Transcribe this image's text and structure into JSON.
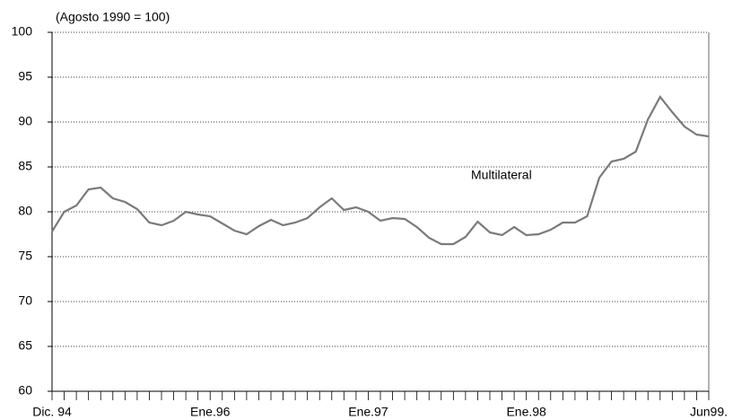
{
  "chart_data": {
    "type": "line",
    "subtitle": "(Agosto 1990 = 100)",
    "categories": [
      "Dic. 94",
      null,
      null,
      null,
      null,
      null,
      null,
      null,
      null,
      null,
      null,
      null,
      null,
      "Ene.96",
      null,
      null,
      null,
      null,
      null,
      null,
      null,
      null,
      null,
      null,
      null,
      null,
      "Ene.97",
      null,
      null,
      null,
      null,
      null,
      null,
      null,
      null,
      null,
      null,
      null,
      null,
      "Ene.98",
      null,
      null,
      null,
      null,
      null,
      null,
      null,
      null,
      null,
      null,
      null,
      null,
      null,
      null,
      "Jun99."
    ],
    "series": [
      {
        "name": "Multilateral",
        "color": "#7a7a7a",
        "values": [
          77.8,
          80.0,
          80.7,
          82.5,
          82.7,
          81.5,
          81.1,
          80.3,
          78.8,
          78.5,
          79.0,
          80.0,
          79.7,
          79.5,
          78.7,
          77.9,
          77.5,
          78.4,
          79.1,
          78.5,
          78.8,
          79.3,
          80.5,
          81.5,
          80.2,
          80.5,
          80.0,
          79.0,
          79.3,
          79.2,
          78.3,
          77.1,
          76.4,
          76.4,
          77.2,
          78.9,
          77.7,
          77.4,
          78.3,
          77.4,
          77.5,
          78.0,
          78.8,
          78.8,
          79.5,
          83.8,
          85.6,
          85.9,
          86.7,
          90.3,
          92.8,
          91.1,
          89.5,
          88.6,
          88.4
        ]
      }
    ],
    "ylim": [
      60,
      100
    ],
    "yticks": [
      60,
      65,
      70,
      75,
      80,
      85,
      90,
      95,
      100
    ],
    "grid": true
  }
}
